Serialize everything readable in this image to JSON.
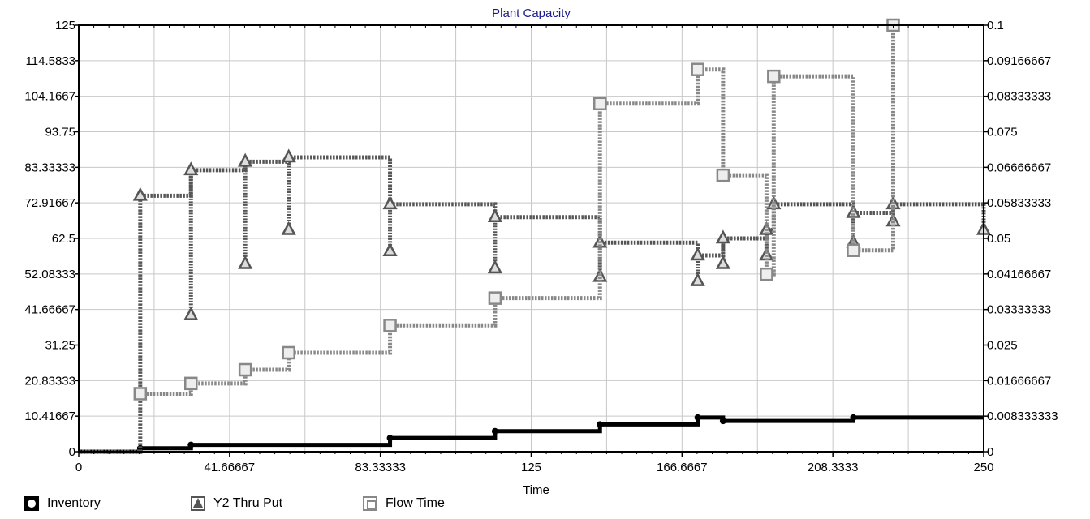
{
  "chart_data": {
    "type": "line",
    "title": "Plant Capacity",
    "xlabel": "Time",
    "xlim": [
      0,
      250
    ],
    "ylim_left": [
      0,
      125
    ],
    "ylim_right": [
      0,
      0.1
    ],
    "x_ticks": [
      "0",
      "41.66667",
      "83.33333",
      "125",
      "166.6667",
      "208.3333",
      "250"
    ],
    "y_ticks_left": [
      "0",
      "10.41667",
      "20.83333",
      "31.25",
      "41.66667",
      "52.08333",
      "62.5",
      "72.91667",
      "83.33333",
      "93.75",
      "104.1667",
      "114.5833",
      "125"
    ],
    "y_ticks_right": [
      "0",
      "0.008333333",
      "0.01666667",
      "0.025",
      "0.03333333",
      "0.04166667",
      "0.05",
      "0.05833333",
      "0.06666667",
      "0.075",
      "0.08333333",
      "0.09166667",
      "0.1"
    ],
    "grid": true,
    "legend_position": "bottom",
    "series": [
      {
        "name": "Inventory",
        "color": "#000000",
        "axis": "left",
        "step": true,
        "points": [
          [
            0,
            0
          ],
          [
            17,
            0
          ],
          [
            17,
            1
          ],
          [
            31,
            1
          ],
          [
            31,
            2
          ],
          [
            86,
            2
          ],
          [
            86,
            4
          ],
          [
            115,
            4
          ],
          [
            115,
            6
          ],
          [
            144,
            6
          ],
          [
            144,
            8
          ],
          [
            171,
            8
          ],
          [
            171,
            10
          ],
          [
            178,
            10
          ],
          [
            178,
            9
          ],
          [
            214,
            9
          ],
          [
            214,
            10
          ],
          [
            250,
            10
          ]
        ]
      },
      {
        "name": "Y2 Thru Put",
        "color": "#555555",
        "axis": "right",
        "step": true,
        "points": [
          [
            0,
            0
          ],
          [
            17,
            0
          ],
          [
            17,
            0.06
          ],
          [
            31,
            0.06
          ],
          [
            31,
            0.066
          ],
          [
            46,
            0.066
          ],
          [
            46,
            0.068
          ],
          [
            58,
            0.068
          ],
          [
            58,
            0.069
          ],
          [
            86,
            0.069
          ],
          [
            86,
            0.058
          ],
          [
            115,
            0.058
          ],
          [
            115,
            0.055
          ],
          [
            144,
            0.055
          ],
          [
            144,
            0.049
          ],
          [
            171,
            0.049
          ],
          [
            171,
            0.046
          ],
          [
            178,
            0.046
          ],
          [
            178,
            0.05
          ],
          [
            190,
            0.05
          ],
          [
            190,
            0.052
          ],
          [
            192,
            0.052
          ],
          [
            192,
            0.058
          ],
          [
            214,
            0.058
          ],
          [
            214,
            0.056
          ],
          [
            225,
            0.056
          ],
          [
            225,
            0.058
          ],
          [
            250,
            0.058
          ]
        ]
      },
      {
        "name": "Flow Time",
        "color": "#888888",
        "axis": "left",
        "step": true,
        "points": [
          [
            17,
            17
          ],
          [
            31,
            17
          ],
          [
            31,
            20
          ],
          [
            46,
            20
          ],
          [
            46,
            24
          ],
          [
            58,
            24
          ],
          [
            58,
            29
          ],
          [
            86,
            29
          ],
          [
            86,
            37
          ],
          [
            115,
            37
          ],
          [
            115,
            45
          ],
          [
            144,
            45
          ],
          [
            144,
            102
          ],
          [
            171,
            102
          ],
          [
            171,
            112
          ],
          [
            178,
            112
          ],
          [
            178,
            81
          ],
          [
            190,
            81
          ],
          [
            190,
            52
          ],
          [
            192,
            52
          ],
          [
            192,
            110
          ],
          [
            214,
            110
          ],
          [
            214,
            59
          ],
          [
            225,
            59
          ],
          [
            225,
            125
          ]
        ]
      }
    ],
    "drops": [
      {
        "series": "Y2 Thru Put",
        "x": 31,
        "to": 0.032
      },
      {
        "series": "Y2 Thru Put",
        "x": 46,
        "to": 0.044
      },
      {
        "series": "Y2 Thru Put",
        "x": 58,
        "to": 0.052
      },
      {
        "series": "Y2 Thru Put",
        "x": 86,
        "to": 0.047
      },
      {
        "series": "Y2 Thru Put",
        "x": 115,
        "to": 0.043
      },
      {
        "series": "Y2 Thru Put",
        "x": 144,
        "to": 0.041
      },
      {
        "series": "Y2 Thru Put",
        "x": 171,
        "to": 0.04
      },
      {
        "series": "Y2 Thru Put",
        "x": 178,
        "to": 0.044
      },
      {
        "series": "Y2 Thru Put",
        "x": 190,
        "to": 0.046
      },
      {
        "series": "Y2 Thru Put",
        "x": 214,
        "to": 0.049
      },
      {
        "series": "Y2 Thru Put",
        "x": 225,
        "to": 0.054
      },
      {
        "series": "Y2 Thru Put",
        "x": 250,
        "to": 0.052
      }
    ]
  },
  "legend": {
    "inventory": "Inventory",
    "thruput": "Y2 Thru Put",
    "flowtime": "Flow Time"
  }
}
